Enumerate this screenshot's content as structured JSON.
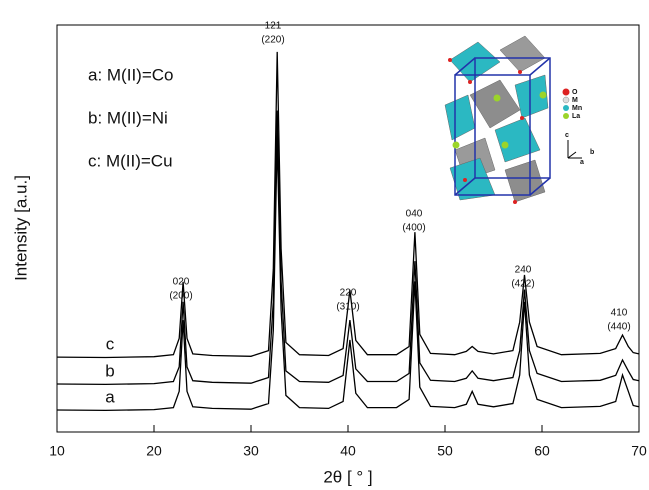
{
  "chart_data": {
    "type": "line",
    "xlabel": "2θ [ ° ]",
    "ylabel": "Intensity [a.u.]",
    "xlim": [
      10,
      70
    ],
    "xticks": [
      10,
      20,
      30,
      40,
      50,
      60,
      70
    ],
    "ylim": [
      0,
      100
    ],
    "color": "#000000",
    "x": [
      10,
      15,
      20,
      22,
      22.6,
      23,
      23.4,
      24,
      26,
      30,
      31.8,
      32.3,
      32.7,
      33.1,
      33.6,
      35,
      38,
      39.5,
      40.2,
      40.8,
      42,
      45,
      46.3,
      46.9,
      47.4,
      48.5,
      51,
      52.2,
      52.8,
      53.4,
      55,
      57,
      57.7,
      58.2,
      58.7,
      59.5,
      62,
      66,
      67.6,
      68.3,
      68.9,
      69.4,
      70
    ],
    "series": [
      {
        "name": "a: M(II)=Co",
        "label": "a",
        "values": [
          5.4,
          5.3,
          5.5,
          6,
          10,
          27.5,
          10,
          6.2,
          5.8,
          5.6,
          7,
          25,
          72,
          30,
          9,
          6,
          5.8,
          7.5,
          22.6,
          9.5,
          6,
          6,
          8,
          37,
          11,
          6.3,
          6,
          6.8,
          10,
          6.8,
          6.2,
          7,
          14,
          32,
          14,
          8,
          6,
          6.3,
          7.5,
          14,
          10,
          6.5,
          6.2
        ]
      },
      {
        "name": "b: M(II)=Ni",
        "label": "b",
        "values": [
          11.8,
          11.7,
          11.9,
          12.4,
          16,
          32,
          16,
          12.6,
          12.2,
          12,
          13.4,
          32,
          79,
          37,
          15,
          12.4,
          12.2,
          13.9,
          27.5,
          15.5,
          12.4,
          12.4,
          14.4,
          42,
          17,
          12.7,
          12.4,
          13.2,
          15,
          13.2,
          12.6,
          13.4,
          20,
          35,
          20,
          14.4,
          12.4,
          12.7,
          13.9,
          17.7,
          15,
          12.9,
          12.6
        ]
      },
      {
        "name": "c: M(II)=Cu",
        "label": "c",
        "values": [
          18.4,
          18.3,
          18.5,
          19,
          23,
          36.9,
          23,
          19.2,
          18.8,
          18.6,
          20,
          40,
          93.4,
          45,
          22,
          19,
          18.8,
          20.5,
          34.9,
          22.5,
          19,
          19,
          21,
          49.1,
          24,
          19.3,
          19,
          19.8,
          21,
          19.8,
          19.2,
          20,
          27,
          38.6,
          27,
          21,
          19,
          19.3,
          20.5,
          23.8,
          21,
          19.5,
          19.2
        ]
      }
    ],
    "annotations": [
      [
        "020",
        "(200)"
      ],
      [
        "121",
        "(220)"
      ],
      [
        "220",
        "(310)"
      ],
      [
        "040",
        "(400)"
      ],
      [
        "240",
        "(422)"
      ],
      [
        "410",
        "(440)"
      ]
    ],
    "inset_legend": [
      "O",
      "M",
      "Mn",
      "La"
    ],
    "inset_axes": [
      "c",
      "a",
      "b"
    ]
  }
}
